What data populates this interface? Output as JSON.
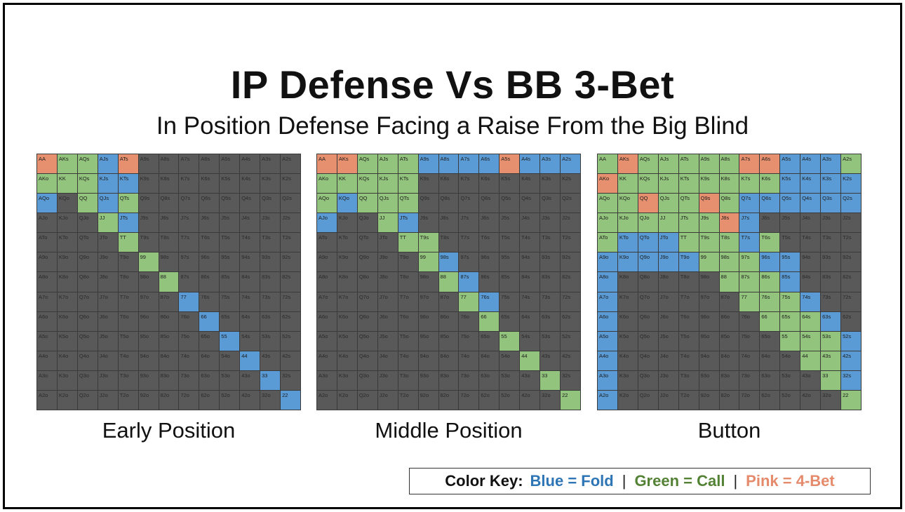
{
  "title": "IP Defense Vs BB 3-Bet",
  "subtitle": "In Position Defense Facing a Raise From the Big Blind",
  "colors": {
    "fold": "#5b9bd5",
    "call": "#93c47d",
    "fourbet": "#e6906f",
    "none": "#595959"
  },
  "legend": {
    "label": "Color Key:",
    "separator": "|",
    "fold": "Blue = Fold",
    "call": "Green = Call",
    "fourbet": "Pink = 4-Bet"
  },
  "ranks": [
    "A",
    "K",
    "Q",
    "J",
    "T",
    "9",
    "8",
    "7",
    "6",
    "5",
    "4",
    "3",
    "2"
  ],
  "grids": [
    {
      "label": "Early Position",
      "rows": [
        "RCCFRXXXXXXXX",
        "CCCFFXXXXXXXX",
        "FXCFCXXXXXXXX",
        "XXXCFXXXXXXXX",
        "XXXXCXXXXXXXX",
        "XXXXXCXXXXXXX",
        "XXXXXXCXXXXXX",
        "XXXXXXXFXXXXX",
        "XXXXXXXXFXXXX",
        "XXXXXXXXXFXXX",
        "XXXXXXXXXXFXX",
        "XXXXXXXXXXXFX",
        "XXXXXXXXXXXXF"
      ]
    },
    {
      "label": "Middle Position",
      "rows": [
        "RRCCCFFFFRFFF",
        "CCCCCXXXXXXXX",
        "CFCCCXXXXXXXX",
        "FXXCFXXXXXXXX",
        "XXXXCCXXXXXXX",
        "XXXXXCFXXXXXX",
        "XXXXXXCFXXXXX",
        "XXXXXXXCFXXXX",
        "XXXXXXXXCXXXX",
        "XXXXXXXXXCXXX",
        "XXXXXXXXXXCXX",
        "XXXXXXXXXXXCX",
        "XXXXXXXXXXXXC"
      ]
    },
    {
      "label": "Button",
      "rows": [
        "CRCCCCCRRFFFC",
        "RCCCCCCCCFFFF",
        "CCRCCRCFFFFFF",
        "CCCCCCRFXXXXX",
        "CFFFCCCFCXXXX",
        "FFFFFCCCFFXXX",
        "FXXXXXCCCFXXX",
        "FXXXXXXCCCFXX",
        "FXXXXXXXCCCFX",
        "FXXXXXXXXCCCF",
        "FXXXXXXXXXCCF",
        "FXXXXXXXXXXCF",
        "FXXXXXXXXXXXC"
      ]
    }
  ]
}
